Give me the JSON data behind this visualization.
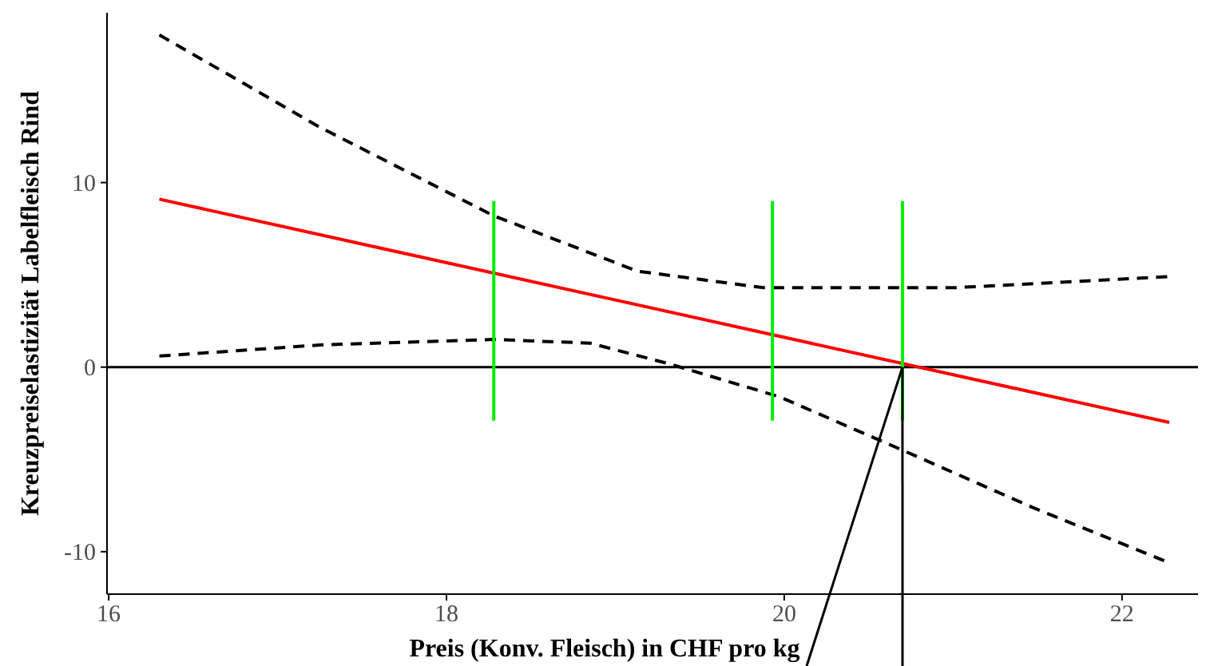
{
  "chart_data": {
    "type": "line",
    "xlabel": "Preis (Konv. Fleisch) in CHF pro kg",
    "ylabel": "Kreuzpreiselastizität Labelfleisch Rind",
    "xlim": [
      15.99,
      22.45
    ],
    "ylim": [
      -12.3,
      19.2
    ],
    "xticks": [
      16,
      18,
      20,
      22
    ],
    "yticks": [
      -10,
      0,
      10
    ],
    "grid": false,
    "ref_lines": [
      {
        "axis": "y",
        "value": 0,
        "color": "#000000"
      }
    ],
    "series": [
      {
        "color": "#ff0000",
        "x": [
          16.3,
          22.28
        ],
        "values": [
          9.1,
          -3.0
        ],
        "line_style": "solid"
      },
      {
        "color": "#000000",
        "x": [
          16.3,
          17.25,
          18.28,
          19.13,
          19.88,
          20.25,
          21,
          22.28
        ],
        "values": [
          18.0,
          13.0,
          8.2,
          5.2,
          4.3,
          4.3,
          4.3,
          4.9
        ],
        "line_style": "dashed"
      },
      {
        "color": "#000000",
        "x": [
          16.3,
          17.25,
          18.28,
          18.85,
          19.31,
          19.97,
          20.7,
          21.47,
          22.28
        ],
        "values": [
          0.6,
          1.2,
          1.5,
          1.3,
          0.2,
          -1.6,
          -4.5,
          -7.6,
          -10.6
        ],
        "line_style": "dashed"
      },
      {
        "color": "#00ee00",
        "x": [
          18.28,
          18.28
        ],
        "values": [
          9.0,
          -2.9
        ],
        "line_style": "solid"
      },
      {
        "color": "#00ee00",
        "x": [
          19.93,
          19.93
        ],
        "values": [
          9.0,
          -2.9
        ],
        "line_style": "solid"
      },
      {
        "color": "#00ee00",
        "x": [
          20.7,
          20.7
        ],
        "values": [
          9.0,
          -2.9
        ],
        "line_style": "solid"
      }
    ]
  }
}
